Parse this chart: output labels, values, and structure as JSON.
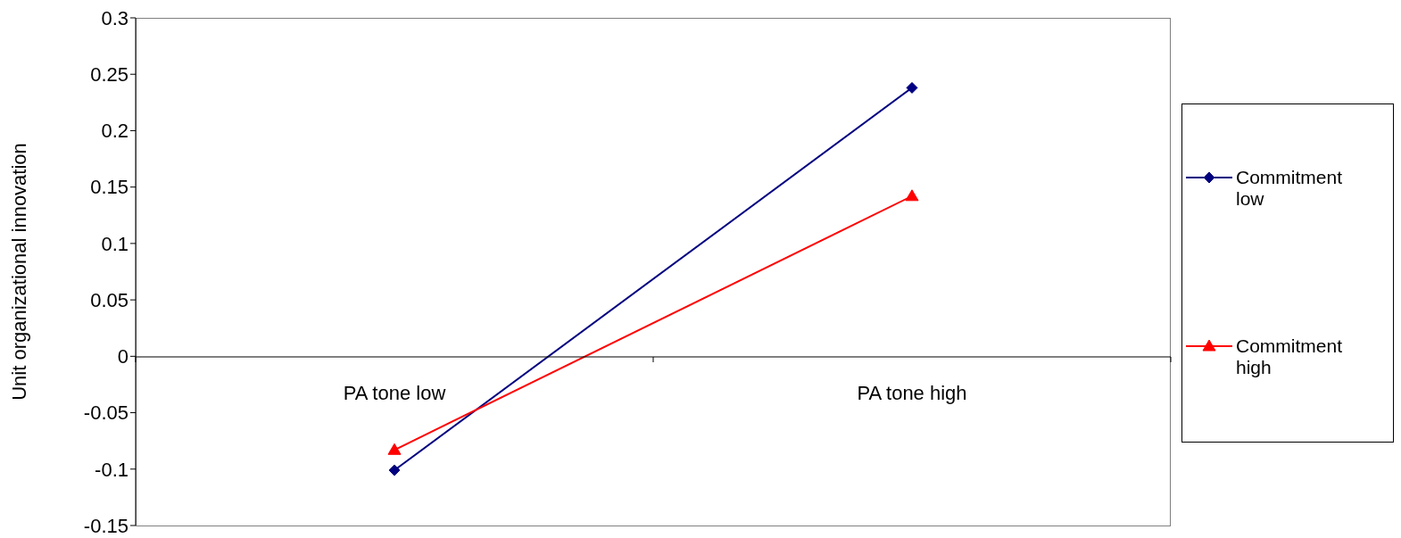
{
  "chart_data": {
    "type": "line",
    "ylabel": "Unit organizational innovation",
    "categories": [
      "PA tone low",
      "PA tone high"
    ],
    "series": [
      {
        "name": "Commitment low",
        "color": "#000080",
        "values": [
          -0.101,
          0.238
        ],
        "marker": "diamond"
      },
      {
        "name": "Commitment high",
        "color": "#ff0000",
        "values": [
          -0.083,
          0.142
        ],
        "marker": "triangle"
      }
    ],
    "ylim": [
      -0.15,
      0.3
    ],
    "yticks": [
      -0.15,
      -0.1,
      -0.05,
      0,
      0.05,
      0.1,
      0.15,
      0.2,
      0.25,
      0.3
    ],
    "legend": "right",
    "grid": false,
    "line_style": "solid"
  }
}
